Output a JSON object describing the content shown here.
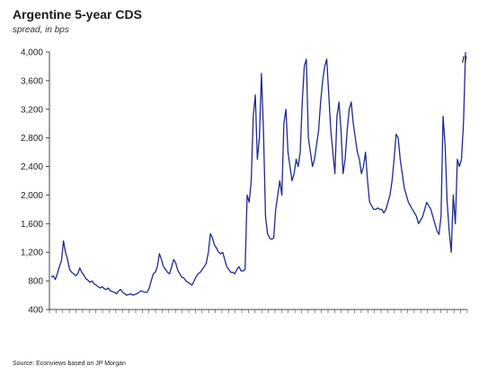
{
  "title": "Argentine 5-year CDS",
  "subtitle": "spread, in bps",
  "source": "Source: Econviews based on JP Morgan",
  "colors": {
    "line": "#1f2a8c",
    "axis": "#444444",
    "grid": "#ffffff"
  },
  "chart_data": {
    "type": "line",
    "title": "Argentine 5-year CDS",
    "subtitle": "spread, in bps",
    "xlabel": "",
    "ylabel": "",
    "ylim": [
      400,
      4000
    ],
    "yticks": [
      "4,000",
      "3,600",
      "3,200",
      "2,800",
      "2,400",
      "2,000",
      "1,600",
      "1,200",
      "800",
      "400"
    ],
    "ytick_values": [
      4000,
      3600,
      3200,
      2800,
      2400,
      2000,
      1600,
      1200,
      800,
      400
    ],
    "grid": false,
    "legend": "none",
    "annotation": "//",
    "series": [
      {
        "values": [
          850,
          870,
          820,
          900,
          1000,
          1080,
          1360,
          1200,
          1100,
          960,
          920,
          900,
          870,
          900,
          980,
          920,
          880,
          830,
          810,
          780,
          800,
          760,
          740,
          720,
          700,
          720,
          690,
          680,
          700,
          660,
          650,
          640,
          620,
          660,
          680,
          640,
          620,
          600,
          610,
          620,
          600,
          610,
          620,
          640,
          660,
          650,
          640,
          640,
          700,
          800,
          900,
          920,
          1000,
          1180,
          1100,
          1000,
          960,
          920,
          900,
          1000,
          1100,
          1050,
          950,
          900,
          850,
          840,
          800,
          780,
          760,
          740,
          800,
          860,
          900,
          920,
          960,
          1000,
          1050,
          1200,
          1460,
          1400,
          1300,
          1260,
          1200,
          1180,
          1200,
          1100,
          1000,
          960,
          920,
          920,
          900,
          960,
          1000,
          940,
          940,
          960,
          2000,
          1900,
          2200,
          3100,
          3400,
          2500,
          2800,
          3700,
          2900,
          1700,
          1460,
          1400,
          1380,
          1400,
          1800,
          2000,
          2200,
          2000,
          3000,
          3200,
          2600,
          2400,
          2200,
          2300,
          2500,
          2400,
          2600,
          3300,
          3800,
          3900,
          2800,
          2600,
          2400,
          2500,
          2700,
          2900,
          3300,
          3600,
          3800,
          3900,
          3400,
          2900,
          2600,
          2300,
          3100,
          3300,
          2900,
          2300,
          2500,
          2900,
          3200,
          3300,
          3000,
          2800,
          2600,
          2500,
          2300,
          2400,
          2600,
          2200,
          1900,
          1850,
          1800,
          1800,
          1820,
          1800,
          1800,
          1750,
          1800,
          1900,
          2000,
          2200,
          2500,
          2850,
          2800,
          2500,
          2300,
          2100,
          2000,
          1900,
          1850,
          1800,
          1750,
          1700,
          1600,
          1650,
          1700,
          1800,
          1900,
          1850,
          1800,
          1700,
          1600,
          1500,
          1450,
          1700,
          3100,
          2700,
          1900,
          1500,
          1200,
          2000,
          1600,
          2500,
          2400,
          2500,
          3000,
          4000
        ]
      }
    ],
    "x_tick_count": 64
  }
}
